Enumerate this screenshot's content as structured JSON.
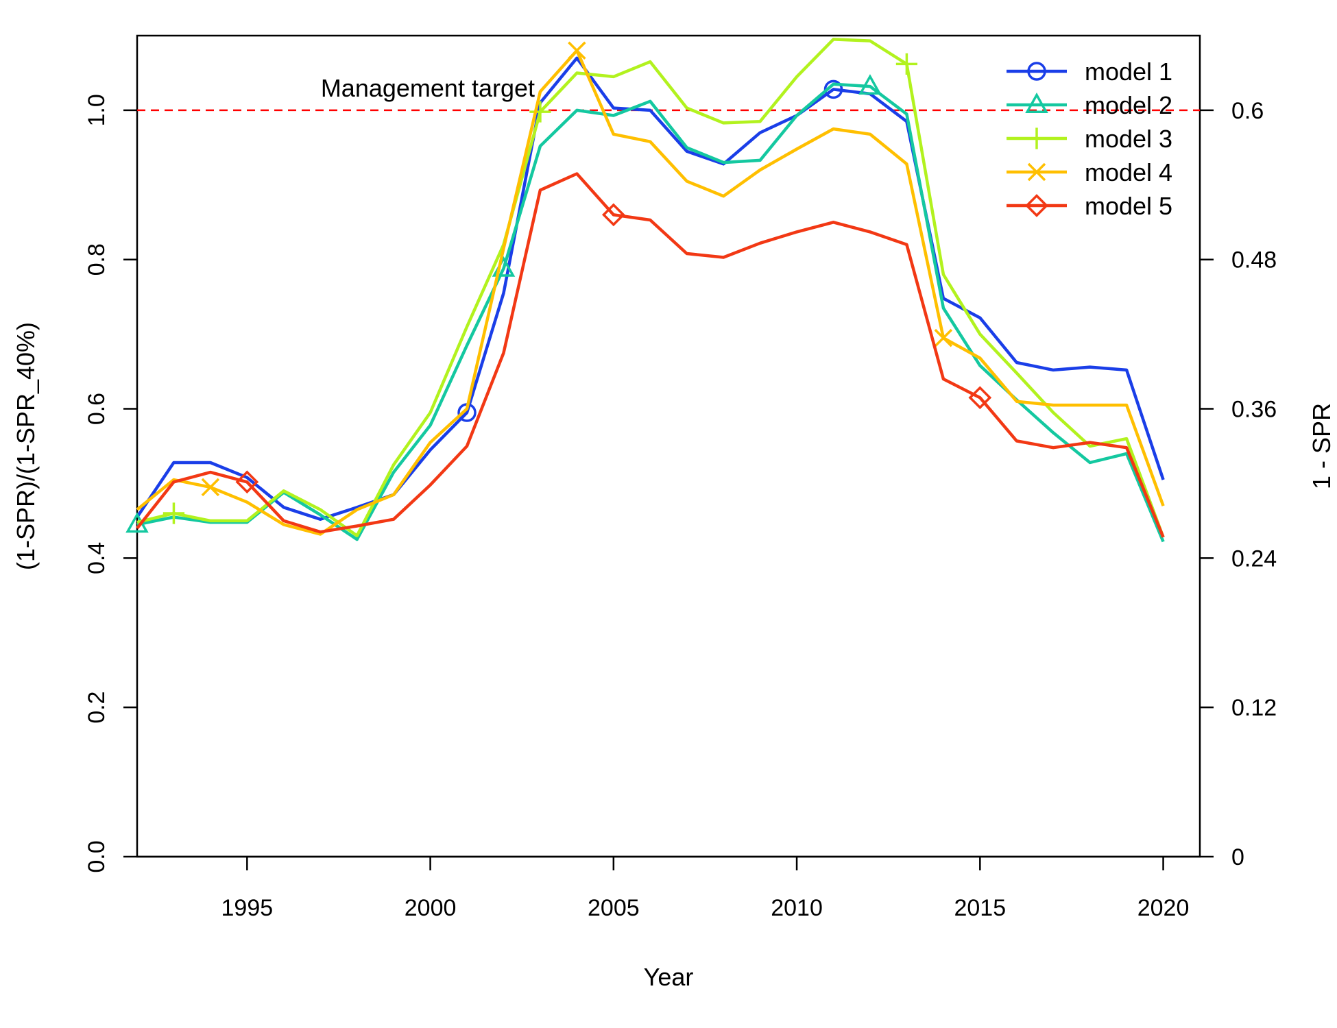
{
  "chart_data": {
    "type": "line",
    "title": "",
    "xlabel": "Year",
    "ylabel": "(1-SPR)/(1-SPR_40%)",
    "ylabel_right": "1 - SPR",
    "xlim": [
      1992,
      2021
    ],
    "ylim": [
      0,
      1.1
    ],
    "x_ticks": [
      1995,
      2000,
      2005,
      2010,
      2015,
      2020
    ],
    "x_tick_labels": [
      "1995",
      "2000",
      "2005",
      "2010",
      "2015",
      "2020"
    ],
    "y_ticks": [
      0,
      0.2,
      0.4,
      0.6,
      0.8,
      1.0
    ],
    "y_tick_labels": [
      "0.0",
      "0.2",
      "0.4",
      "0.6",
      "0.8",
      "1.0"
    ],
    "y_right_ticks": [
      0,
      0.2,
      0.4,
      0.6,
      0.8,
      1.0
    ],
    "y_right_tick_labels": [
      "0",
      "0.12",
      "0.24",
      "0.36",
      "0.48",
      "0.6"
    ],
    "grid": false,
    "legend_position": "top-right",
    "reference_line": {
      "y": 1.0,
      "label": "Management target",
      "color": "#ff0000",
      "style": "dashed"
    },
    "x": [
      1992,
      1993,
      1994,
      1995,
      1996,
      1997,
      1998,
      1999,
      2000,
      2001,
      2002,
      2003,
      2004,
      2005,
      2006,
      2007,
      2008,
      2009,
      2010,
      2011,
      2012,
      2013,
      2014,
      2015,
      2016,
      2017,
      2018,
      2019,
      2020
    ],
    "series": [
      {
        "name": "model 1",
        "color": "#1a3ee8",
        "marker": "circle",
        "marker_years": [
          2001,
          2011
        ],
        "values": [
          0.455,
          0.528,
          0.528,
          0.508,
          0.468,
          0.452,
          0.468,
          0.485,
          0.545,
          0.595,
          0.755,
          1.01,
          1.07,
          1.003,
          1.0,
          0.945,
          0.928,
          0.97,
          0.993,
          1.028,
          1.022,
          0.985,
          0.748,
          0.722,
          0.662,
          0.652,
          0.656,
          0.652,
          0.505
        ]
      },
      {
        "name": "model 2",
        "color": "#14c8a0",
        "marker": "triangle",
        "marker_years": [
          1992,
          2002,
          2012
        ],
        "values": [
          0.445,
          0.455,
          0.448,
          0.448,
          0.488,
          0.458,
          0.425,
          0.515,
          0.578,
          0.685,
          0.788,
          0.952,
          1.0,
          0.993,
          1.012,
          0.95,
          0.93,
          0.933,
          0.993,
          1.035,
          1.032,
          0.995,
          0.735,
          0.658,
          0.612,
          0.568,
          0.528,
          0.54,
          0.422
        ]
      },
      {
        "name": "model 3",
        "color": "#b2f21e",
        "marker": "plus",
        "marker_years": [
          1993,
          2003,
          2013
        ],
        "values": [
          0.448,
          0.46,
          0.45,
          0.45,
          0.49,
          0.465,
          0.43,
          0.525,
          0.595,
          0.71,
          0.82,
          0.998,
          1.05,
          1.045,
          1.065,
          1.003,
          0.983,
          0.985,
          1.045,
          1.095,
          1.093,
          1.062,
          0.78,
          0.7,
          0.648,
          0.595,
          0.55,
          0.56,
          0.428
        ]
      },
      {
        "name": "model 4",
        "color": "#ffbf00",
        "marker": "x",
        "marker_years": [
          1994,
          2004,
          2014
        ],
        "values": [
          0.465,
          0.505,
          0.495,
          0.475,
          0.445,
          0.432,
          0.465,
          0.485,
          0.555,
          0.6,
          0.815,
          1.025,
          1.08,
          0.968,
          0.958,
          0.905,
          0.885,
          0.92,
          0.948,
          0.975,
          0.968,
          0.928,
          0.695,
          0.668,
          0.61,
          0.605,
          0.605,
          0.605,
          0.47
        ]
      },
      {
        "name": "model 5",
        "color": "#f23814",
        "marker": "diamond",
        "marker_years": [
          1995,
          2005,
          2015
        ],
        "values": [
          0.44,
          0.502,
          0.515,
          0.502,
          0.45,
          0.435,
          0.443,
          0.452,
          0.498,
          0.55,
          0.675,
          0.893,
          0.915,
          0.86,
          0.853,
          0.808,
          0.803,
          0.822,
          0.837,
          0.85,
          0.837,
          0.82,
          0.64,
          0.615,
          0.557,
          0.548,
          0.555,
          0.548,
          0.428
        ]
      }
    ]
  }
}
